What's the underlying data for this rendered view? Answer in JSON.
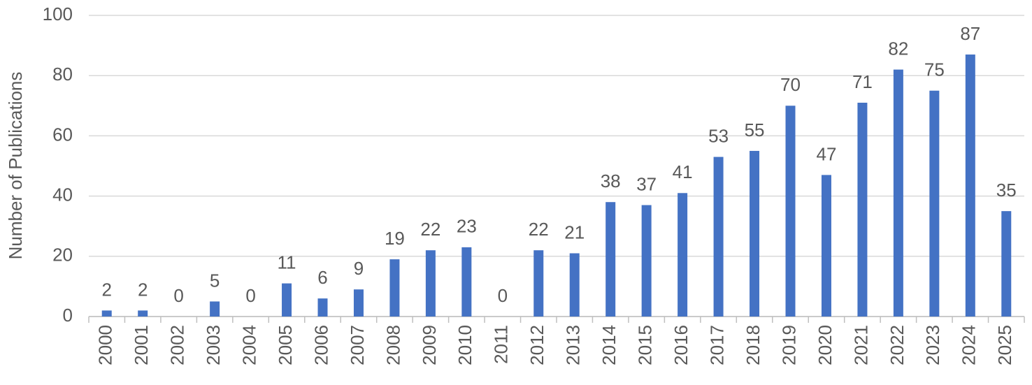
{
  "chart_data": {
    "type": "bar",
    "y_label": "Number of Publications",
    "categories": [
      "2000",
      "2001",
      "2002",
      "2003",
      "2004",
      "2005",
      "2006",
      "2007",
      "2008",
      "2009",
      "2010",
      "2011",
      "2012",
      "2013",
      "2014",
      "2015",
      "2016",
      "2017",
      "2018",
      "2019",
      "2020",
      "2021",
      "2022",
      "2023",
      "2024",
      "2025"
    ],
    "values": [
      2,
      2,
      0,
      5,
      0,
      11,
      6,
      9,
      19,
      22,
      23,
      0,
      22,
      21,
      38,
      37,
      41,
      53,
      55,
      70,
      47,
      71,
      82,
      75,
      87,
      35
    ],
    "color": "#4472c4",
    "ylim": [
      0,
      100
    ],
    "yticks": [
      0,
      20,
      40,
      60,
      80,
      100
    ],
    "grid": true
  }
}
